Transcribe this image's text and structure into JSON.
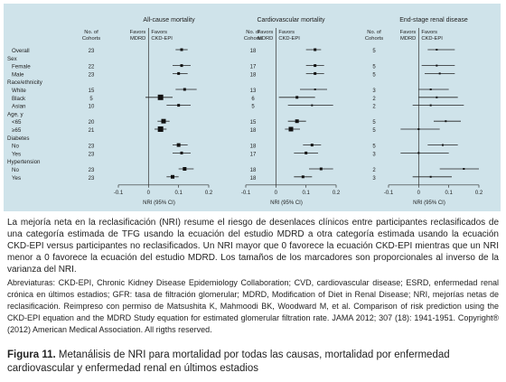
{
  "panel_labels": {
    "cohorts": "No. of Cohorts",
    "favors_left": "Favors MDRD",
    "favors_right": "Favors CKD-EPI",
    "xlabel": "NRI (95% CI)"
  },
  "rows": [
    {
      "label": "Overall",
      "type": "item",
      "cohorts": [
        "23",
        "18",
        "5"
      ]
    },
    {
      "label": "Sex",
      "type": "header"
    },
    {
      "label": "Female",
      "type": "item",
      "cohorts": [
        "22",
        "17",
        "5"
      ]
    },
    {
      "label": "Male",
      "type": "item",
      "cohorts": [
        "23",
        "18",
        "5"
      ]
    },
    {
      "label": "Race/ethnicity",
      "type": "header"
    },
    {
      "label": "White",
      "type": "item",
      "cohorts": [
        "15",
        "13",
        "3"
      ]
    },
    {
      "label": "Black",
      "type": "item",
      "cohorts": [
        "5",
        "6",
        "2"
      ]
    },
    {
      "label": "Asian",
      "type": "item",
      "cohorts": [
        "10",
        "5",
        "2"
      ]
    },
    {
      "label": "Age, y",
      "type": "header"
    },
    {
      "label": "<65",
      "type": "item",
      "cohorts": [
        "20",
        "15",
        "5"
      ]
    },
    {
      "label": "≥65",
      "type": "item",
      "cohorts": [
        "21",
        "18",
        "5"
      ]
    },
    {
      "label": "Diabetes",
      "type": "header"
    },
    {
      "label": "No",
      "type": "item",
      "cohorts": [
        "23",
        "18",
        "5"
      ]
    },
    {
      "label": "Yes",
      "type": "item",
      "cohorts": [
        "23",
        "17",
        "3"
      ]
    },
    {
      "label": "Hypertension",
      "type": "header"
    },
    {
      "label": "No",
      "type": "item",
      "cohorts": [
        "23",
        "18",
        "2"
      ]
    },
    {
      "label": "Yes",
      "type": "item",
      "cohorts": [
        "23",
        "18",
        "3"
      ]
    }
  ],
  "chart_data": [
    {
      "type": "scatter",
      "title": "All-cause mortality",
      "xlabel": "NRI (95% CI)",
      "xlim": [
        -0.1,
        0.2
      ],
      "xticks": [
        "-0.1",
        "0",
        "0.1",
        "0.2"
      ],
      "points": [
        {
          "row": "Overall",
          "y": 0.11,
          "lo": 0.09,
          "hi": 0.13,
          "size": 3
        },
        {
          "row": "Female",
          "y": 0.11,
          "lo": 0.08,
          "hi": 0.14,
          "size": 3
        },
        {
          "row": "Male",
          "y": 0.1,
          "lo": 0.08,
          "hi": 0.13,
          "size": 3
        },
        {
          "row": "White",
          "y": 0.12,
          "lo": 0.09,
          "hi": 0.16,
          "size": 3
        },
        {
          "row": "Black",
          "y": 0.04,
          "lo": -0.01,
          "hi": 0.08,
          "size": 6
        },
        {
          "row": "Asian",
          "y": 0.1,
          "lo": 0.06,
          "hi": 0.14,
          "size": 3
        },
        {
          "row": "<65",
          "y": 0.05,
          "lo": 0.03,
          "hi": 0.07,
          "size": 5
        },
        {
          "row": "≥65",
          "y": 0.04,
          "lo": 0.02,
          "hi": 0.06,
          "size": 6
        },
        {
          "row": "No",
          "y": 0.1,
          "lo": 0.08,
          "hi": 0.13,
          "size": 4
        },
        {
          "row": "Yes",
          "y": 0.11,
          "lo": 0.08,
          "hi": 0.14,
          "size": 3
        },
        {
          "row": "No",
          "y": 0.12,
          "lo": 0.1,
          "hi": 0.15,
          "size": 4
        },
        {
          "row": "Yes",
          "y": 0.08,
          "lo": 0.06,
          "hi": 0.1,
          "size": 4
        }
      ]
    },
    {
      "type": "scatter",
      "title": "Cardiovascular mortality",
      "xlabel": "NRI (95% CI)",
      "xlim": [
        -0.1,
        0.2
      ],
      "xticks": [
        "-0.1",
        "0",
        "0.1",
        "0.2"
      ],
      "points": [
        {
          "row": "Overall",
          "y": 0.13,
          "lo": 0.1,
          "hi": 0.15,
          "size": 3
        },
        {
          "row": "Female",
          "y": 0.13,
          "lo": 0.1,
          "hi": 0.16,
          "size": 3
        },
        {
          "row": "Male",
          "y": 0.13,
          "lo": 0.1,
          "hi": 0.16,
          "size": 3
        },
        {
          "row": "White",
          "y": 0.13,
          "lo": 0.08,
          "hi": 0.17,
          "size": 2
        },
        {
          "row": "Black",
          "y": 0.07,
          "lo": 0.01,
          "hi": 0.13,
          "size": 3
        },
        {
          "row": "Asian",
          "y": 0.12,
          "lo": 0.04,
          "hi": 0.19,
          "size": 2
        },
        {
          "row": "<65",
          "y": 0.07,
          "lo": 0.04,
          "hi": 0.1,
          "size": 4
        },
        {
          "row": "≥65",
          "y": 0.05,
          "lo": 0.03,
          "hi": 0.08,
          "size": 5
        },
        {
          "row": "No",
          "y": 0.12,
          "lo": 0.09,
          "hi": 0.15,
          "size": 3
        },
        {
          "row": "Yes",
          "y": 0.1,
          "lo": 0.06,
          "hi": 0.14,
          "size": 3
        },
        {
          "row": "No",
          "y": 0.15,
          "lo": 0.11,
          "hi": 0.19,
          "size": 3
        },
        {
          "row": "Yes",
          "y": 0.09,
          "lo": 0.06,
          "hi": 0.12,
          "size": 3
        }
      ]
    },
    {
      "type": "scatter",
      "title": "End-stage renal disease",
      "xlabel": "NRI (95% CI)",
      "xlim": [
        -0.1,
        0.2
      ],
      "xticks": [
        "-0.1",
        "0",
        "0.1",
        "0.2"
      ],
      "points": [
        {
          "row": "Overall",
          "y": 0.06,
          "lo": 0.03,
          "hi": 0.12,
          "size": 2
        },
        {
          "row": "Female",
          "y": 0.06,
          "lo": 0.01,
          "hi": 0.12,
          "size": 2
        },
        {
          "row": "Male",
          "y": 0.07,
          "lo": 0.02,
          "hi": 0.12,
          "size": 2
        },
        {
          "row": "White",
          "y": 0.04,
          "lo": 0.0,
          "hi": 0.1,
          "size": 2
        },
        {
          "row": "Black",
          "y": 0.06,
          "lo": 0.0,
          "hi": 0.13,
          "size": 2
        },
        {
          "row": "Asian",
          "y": 0.04,
          "lo": -0.02,
          "hi": 0.15,
          "size": 2
        },
        {
          "row": "<65",
          "y": 0.09,
          "lo": 0.05,
          "hi": 0.14,
          "size": 2
        },
        {
          "row": "≥65",
          "y": 0.0,
          "lo": -0.06,
          "hi": 0.07,
          "size": 2
        },
        {
          "row": "No",
          "y": 0.08,
          "lo": 0.03,
          "hi": 0.13,
          "size": 2
        },
        {
          "row": "Yes",
          "y": 0.0,
          "lo": -0.06,
          "hi": 0.1,
          "size": 2
        },
        {
          "row": "No",
          "y": 0.15,
          "lo": 0.07,
          "hi": 0.2,
          "size": 2
        },
        {
          "row": "Yes",
          "y": 0.04,
          "lo": -0.02,
          "hi": 0.11,
          "size": 2
        }
      ]
    }
  ],
  "text": {
    "legend": "La mejoría neta en la reclasificación (NRI) resume el riesgo de desenlaces clínicos entre participantes reclasificados de una categoría estimada de TFG usando la ecuación del estudio MDRD a otra categoría estimada usando la ecuación CKD-EPI versus participantes no reclasificados. Un NRI mayor que 0 favorece la ecuación CKD-EPI mientras que un NRI menor a 0 favorece la ecuación del estudio MDRD. Los tamaños de los marcadores son proporcionales al inverso de la varianza del NRI.",
    "abbreviations": "Abreviaturas: CKD-EPI, Chronic Kidney Disease Epidemiology Collaboration; CVD, cardiovascular disease; ESRD, enfermedad renal crónica en últimos estadios; GFR: tasa de filtración glomerular; MDRD, Modification of Diet in Renal Disease; NRI, mejorías netas de reclasificación. Reimpreso con permiso de Matsushita K, Mahmoodi BK, Woodward M, et al. Comparison of risk prediction using the CKD-EPI equation and the MDRD Study equation for estimated glomerular filtration rate. JAMA 2012; 307 (18): 1941-1951. Copyright® (2012) American Medical Association. All rigths reserved.",
    "caption_label": "Figura 11.",
    "caption": "Metanálisis de NRI para mortalidad por todas las causas, mortalidad por enfermedad cardiovascular y enfermedad renal en últimos estadios"
  }
}
